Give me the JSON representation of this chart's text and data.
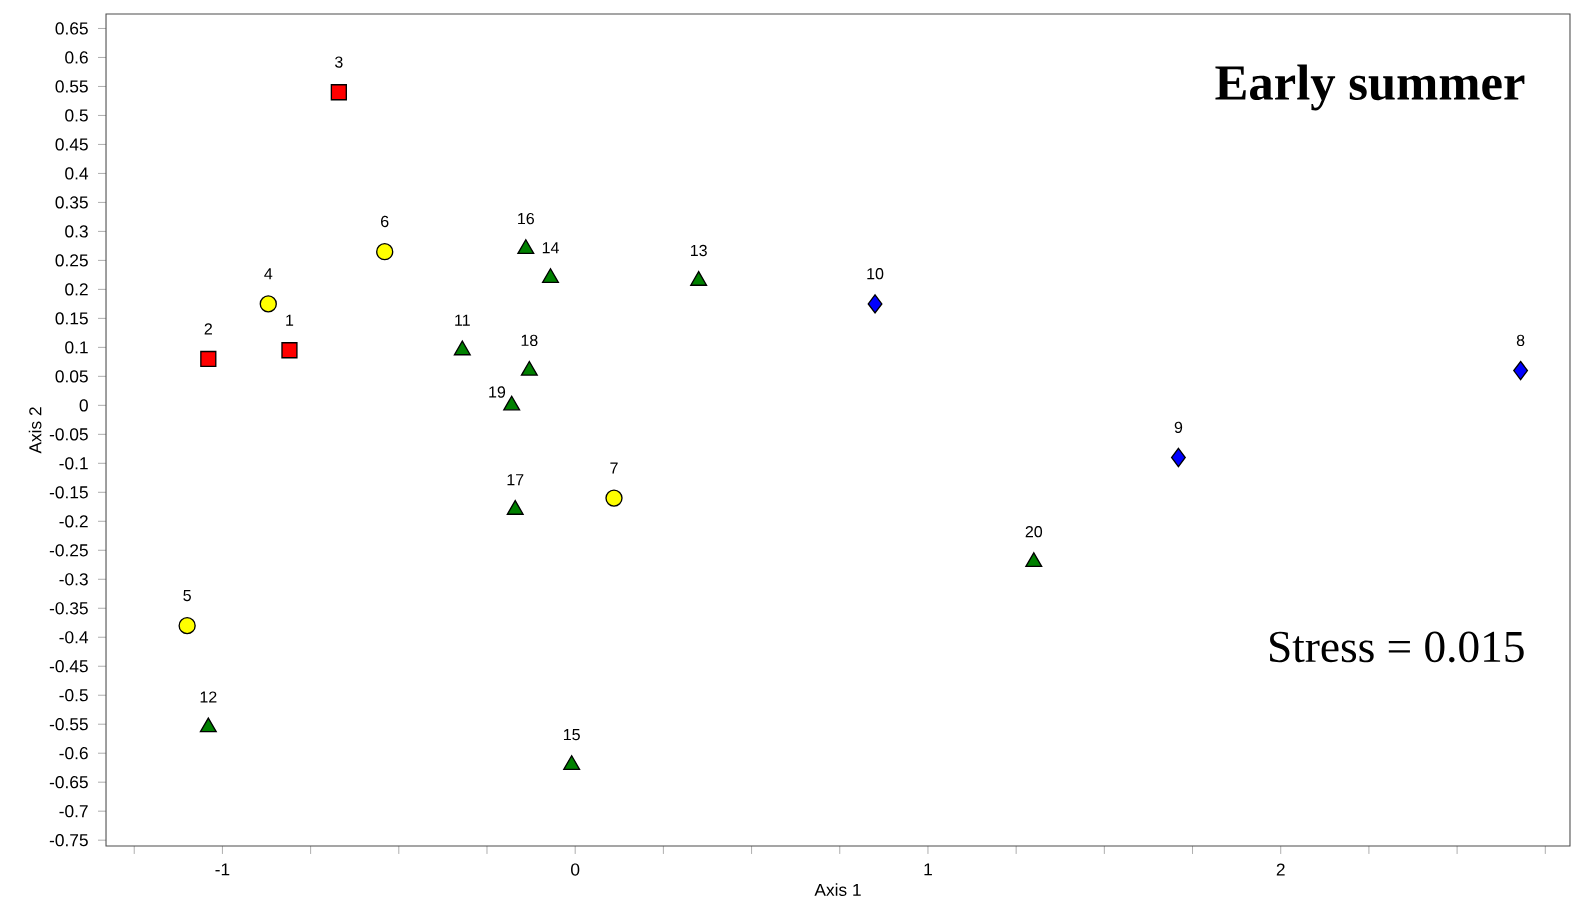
{
  "chart_data": {
    "type": "scatter",
    "title": "Early summer",
    "xlabel": "Axis 1",
    "ylabel": "Axis 2",
    "xlim": [
      -1.33,
      2.82
    ],
    "ylim": [
      -0.76,
      0.675
    ],
    "xticks": [
      {
        "value": -1.25,
        "label": null
      },
      -1,
      {
        "value": -0.75,
        "label": null
      },
      {
        "value": -0.5,
        "label": null
      },
      {
        "value": -0.25,
        "label": null
      },
      0,
      {
        "value": 0.25,
        "label": null
      },
      {
        "value": 0.5,
        "label": null
      },
      {
        "value": 0.75,
        "label": null
      },
      1,
      {
        "value": 1.25,
        "label": null
      },
      {
        "value": 1.5,
        "label": null
      },
      {
        "value": 1.75,
        "label": null
      },
      2,
      {
        "value": 2.25,
        "label": null
      },
      {
        "value": 2.5,
        "label": null
      },
      {
        "value": 2.75,
        "label": null
      }
    ],
    "yticks": [
      -0.75,
      -0.7,
      -0.65,
      -0.6,
      -0.55,
      -0.5,
      -0.45,
      -0.4,
      -0.35,
      -0.3,
      -0.25,
      -0.2,
      -0.15,
      -0.1,
      -0.05,
      0,
      0.05,
      0.1,
      0.15,
      0.2,
      0.25,
      0.3,
      0.35,
      0.4,
      0.45,
      0.5,
      0.55,
      0.6,
      0.65
    ],
    "series": [
      {
        "color": "#ff0000",
        "marker": "square",
        "x": [
          -0.81,
          -1.04,
          -0.67
        ],
        "values": [
          0.095,
          0.08,
          0.54
        ]
      },
      {
        "color": "#ffff00",
        "marker": "circle",
        "x": [
          -0.87,
          -1.1,
          -0.54,
          0.11
        ],
        "values": [
          0.175,
          -0.38,
          0.265,
          -0.16
        ]
      },
      {
        "color": "#0000ff",
        "marker": "diamond",
        "x": [
          2.68,
          1.71,
          0.85
        ],
        "values": [
          0.06,
          -0.09,
          0.175
        ]
      },
      {
        "color": "#008000",
        "marker": "triangle",
        "x": [
          -0.32,
          -1.04,
          0.35,
          -0.07,
          -0.01,
          -0.14,
          -0.17,
          -0.13,
          -0.18,
          1.3
        ],
        "values": [
          0.095,
          -0.555,
          0.215,
          0.22,
          -0.62,
          0.27,
          -0.18,
          0.06,
          0.0,
          -0.27
        ]
      }
    ],
    "annotations": [
      {
        "text": "1",
        "x": -0.81,
        "y": 0.095
      },
      {
        "text": "2",
        "x": -1.04,
        "y": 0.08
      },
      {
        "text": "3",
        "x": -0.67,
        "y": 0.54
      },
      {
        "text": "4",
        "x": -0.87,
        "y": 0.175
      },
      {
        "text": "5",
        "x": -1.1,
        "y": -0.38
      },
      {
        "text": "6",
        "x": -0.54,
        "y": 0.265
      },
      {
        "text": "7",
        "x": 0.11,
        "y": -0.16
      },
      {
        "text": "8",
        "x": 2.68,
        "y": 0.06
      },
      {
        "text": "9",
        "x": 1.71,
        "y": -0.09
      },
      {
        "text": "10",
        "x": 0.85,
        "y": 0.175
      },
      {
        "text": "11",
        "x": -0.32,
        "y": 0.095
      },
      {
        "text": "12",
        "x": -1.04,
        "y": -0.555
      },
      {
        "text": "13",
        "x": 0.35,
        "y": 0.215
      },
      {
        "text": "14",
        "x": -0.07,
        "y": 0.22
      },
      {
        "text": "15",
        "x": -0.01,
        "y": -0.62
      },
      {
        "text": "16",
        "x": -0.14,
        "y": 0.27
      },
      {
        "text": "17",
        "x": -0.17,
        "y": -0.18
      },
      {
        "text": "18",
        "x": -0.13,
        "y": 0.06
      },
      {
        "text": "19",
        "x": -0.18,
        "y": 0.0
      },
      {
        "text": "20",
        "x": 1.3,
        "y": -0.27
      },
      "Stress = 0.015"
    ]
  }
}
